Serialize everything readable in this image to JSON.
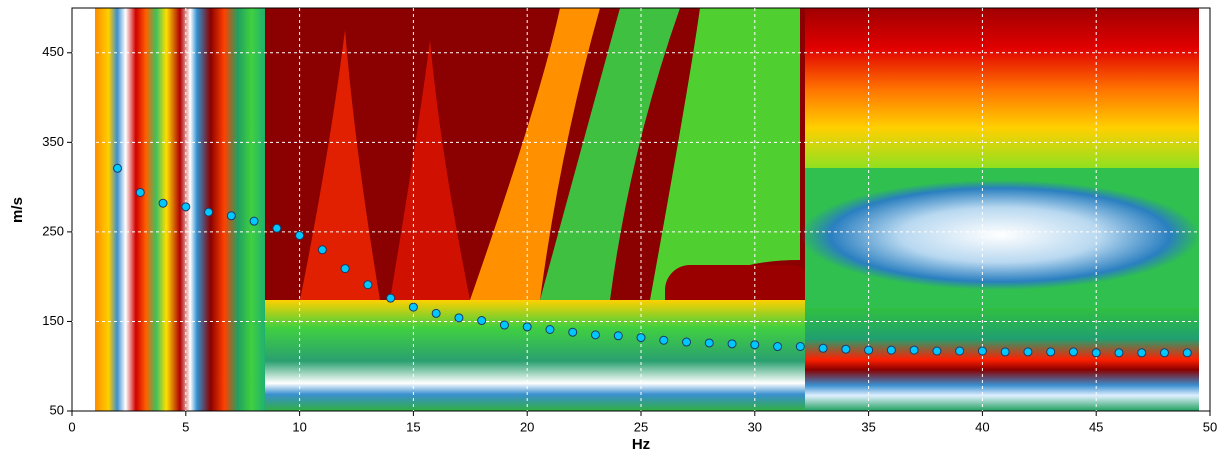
{
  "chart_data": {
    "type": "scatter",
    "x_label": "Hz",
    "y_label": "m/s",
    "x": [
      2,
      3,
      4,
      5,
      6,
      7,
      8,
      9,
      10,
      11,
      12,
      13,
      14,
      15,
      16,
      17,
      18,
      19,
      20,
      21,
      22,
      23,
      24,
      25,
      26,
      27,
      28,
      29,
      30,
      31,
      32,
      33,
      34,
      35,
      36,
      37,
      38,
      39,
      40,
      41,
      42,
      43,
      44,
      45,
      46,
      47,
      48,
      49
    ],
    "values": [
      321,
      294,
      282,
      278,
      272,
      268,
      262,
      254,
      246,
      230,
      209,
      191,
      176,
      166,
      159,
      154,
      151,
      146,
      144,
      141,
      138,
      135,
      134,
      132,
      129,
      127,
      126,
      125,
      124,
      122,
      122,
      120,
      119,
      118,
      118,
      118,
      117,
      117,
      117,
      116,
      116,
      116,
      116,
      115,
      115,
      115,
      115,
      115
    ],
    "color": "#00c8ff",
    "xlim": [
      0,
      50
    ],
    "xticks": [
      0,
      5,
      10,
      15,
      20,
      25,
      30,
      35,
      40,
      45,
      50
    ],
    "ylim": [
      50,
      500
    ],
    "yticks": [
      50,
      150,
      250,
      350,
      450
    ],
    "grid": true
  }
}
